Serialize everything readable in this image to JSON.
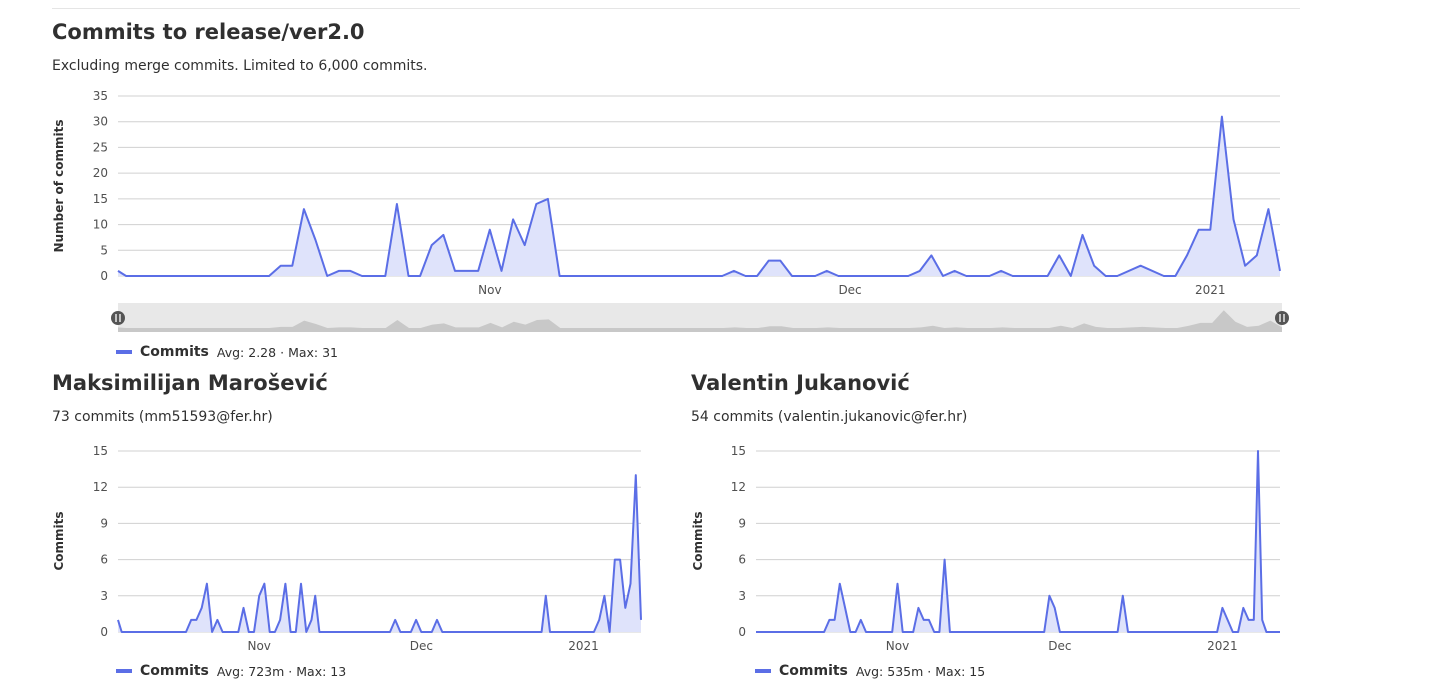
{
  "main": {
    "title": "Commits to release/ver2.0",
    "subtitle": "Excluding merge commits. Limited to 6,000 commits.",
    "legend": {
      "name": "Commits",
      "avg_label": "Avg: 2.28",
      "sep": "·",
      "max_label": "Max: 31"
    }
  },
  "authors": [
    {
      "name": "Maksimilijan Marošević",
      "summary": "73 commits (mm51593@fer.hr)",
      "legend": {
        "name": "Commits",
        "avg_label": "Avg: 723m",
        "sep": "·",
        "max_label": "Max: 13"
      }
    },
    {
      "name": "Valentin Jukanović",
      "summary": "54 commits (valentin.jukanovic@fer.hr)",
      "legend": {
        "name": "Commits",
        "avg_label": "Avg: 535m",
        "sep": "·",
        "max_label": "Max: 15"
      }
    }
  ],
  "colors": {
    "line": "#5b6ee6",
    "fill": "#dfe3fb",
    "grid": "#d0d0d0",
    "brush": "#e8e8e8",
    "brush_area": "#c8c8c8"
  },
  "chart_data": [
    {
      "type": "area",
      "title": "Commits to release/ver2.0",
      "xlabel": "",
      "ylabel": "Number of commits",
      "ylim": [
        0,
        35
      ],
      "yticks": [
        0,
        5,
        10,
        15,
        20,
        25,
        30,
        35
      ],
      "xticks": [
        "Nov",
        "Dec",
        "2021"
      ],
      "xtick_positions": [
        32,
        63,
        94
      ],
      "xlim": [
        0,
        100
      ],
      "grid": true,
      "legend_position": "bottom-left",
      "series": [
        {
          "name": "Commits",
          "points": [
            [
              0,
              1
            ],
            [
              0.7,
              0
            ],
            [
              13,
              0
            ],
            [
              14,
              2
            ],
            [
              15,
              2
            ],
            [
              16,
              13
            ],
            [
              17,
              7
            ],
            [
              18,
              0
            ],
            [
              19,
              1
            ],
            [
              20,
              1
            ],
            [
              21,
              0
            ],
            [
              23,
              0
            ],
            [
              24,
              14
            ],
            [
              25,
              0
            ],
            [
              26,
              0
            ],
            [
              27,
              6
            ],
            [
              28,
              8
            ],
            [
              29,
              1
            ],
            [
              31,
              1
            ],
            [
              32,
              9
            ],
            [
              33,
              1
            ],
            [
              34,
              11
            ],
            [
              35,
              6
            ],
            [
              36,
              14
            ],
            [
              37,
              15
            ],
            [
              38,
              0
            ],
            [
              52,
              0
            ],
            [
              53,
              1
            ],
            [
              54,
              0
            ],
            [
              55,
              0
            ],
            [
              56,
              3
            ],
            [
              57,
              3
            ],
            [
              58,
              0
            ],
            [
              60,
              0
            ],
            [
              61,
              1
            ],
            [
              62,
              0
            ],
            [
              68,
              0
            ],
            [
              69,
              1
            ],
            [
              70,
              4
            ],
            [
              71,
              0
            ],
            [
              72,
              1
            ],
            [
              73,
              0
            ],
            [
              75,
              0
            ],
            [
              76,
              1
            ],
            [
              77,
              0
            ],
            [
              80,
              0
            ],
            [
              81,
              4
            ],
            [
              82,
              0
            ],
            [
              83,
              8
            ],
            [
              84,
              2
            ],
            [
              85,
              0
            ],
            [
              86,
              0
            ],
            [
              88,
              2
            ],
            [
              90,
              0
            ],
            [
              91,
              0
            ],
            [
              92,
              4
            ],
            [
              93,
              9
            ],
            [
              94,
              9
            ],
            [
              95,
              31
            ],
            [
              96,
              11
            ],
            [
              97,
              2
            ],
            [
              98,
              4
            ],
            [
              99,
              13
            ],
            [
              100,
              1
            ]
          ]
        }
      ]
    },
    {
      "type": "area",
      "title": "Maksimilijan Marošević",
      "xlabel": "",
      "ylabel": "Commits",
      "ylim": [
        0,
        15
      ],
      "yticks": [
        0,
        3,
        6,
        9,
        12,
        15
      ],
      "xticks": [
        "Nov",
        "Dec",
        "2021"
      ],
      "xtick_positions": [
        27,
        58,
        89
      ],
      "xlim": [
        0,
        100
      ],
      "grid": true,
      "legend_position": "bottom-left",
      "series": [
        {
          "name": "Commits",
          "points": [
            [
              0,
              1
            ],
            [
              0.7,
              0
            ],
            [
              13,
              0
            ],
            [
              14,
              1
            ],
            [
              15,
              1
            ],
            [
              16,
              2
            ],
            [
              17,
              4
            ],
            [
              18,
              0
            ],
            [
              19,
              1
            ],
            [
              20,
              0
            ],
            [
              23,
              0
            ],
            [
              24,
              2
            ],
            [
              25,
              0
            ],
            [
              26,
              0
            ],
            [
              27,
              3
            ],
            [
              28,
              4
            ],
            [
              29,
              0
            ],
            [
              30,
              0
            ],
            [
              31,
              1
            ],
            [
              32,
              4
            ],
            [
              33,
              0
            ],
            [
              34,
              0
            ],
            [
              35,
              4
            ],
            [
              36,
              0
            ],
            [
              37,
              1
            ],
            [
              37.7,
              3
            ],
            [
              38.5,
              0
            ],
            [
              52,
              0
            ],
            [
              53,
              1
            ],
            [
              54,
              0
            ],
            [
              56,
              0
            ],
            [
              57,
              1
            ],
            [
              58,
              0
            ],
            [
              60,
              0
            ],
            [
              61,
              1
            ],
            [
              62,
              0
            ],
            [
              81,
              0
            ],
            [
              81.8,
              3
            ],
            [
              82.6,
              0
            ],
            [
              91,
              0
            ],
            [
              92,
              1
            ],
            [
              93,
              3
            ],
            [
              94,
              0
            ],
            [
              95,
              6
            ],
            [
              96,
              6
            ],
            [
              97,
              2
            ],
            [
              98,
              4
            ],
            [
              99,
              13
            ],
            [
              100,
              1
            ]
          ]
        }
      ]
    },
    {
      "type": "area",
      "title": "Valentin Jukanović",
      "xlabel": "",
      "ylabel": "Commits",
      "ylim": [
        0,
        15
      ],
      "yticks": [
        0,
        3,
        6,
        9,
        12,
        15
      ],
      "xticks": [
        "Nov",
        "Dec",
        "2021"
      ],
      "xtick_positions": [
        27,
        58,
        89
      ],
      "xlim": [
        0,
        100
      ],
      "grid": true,
      "legend_position": "bottom-left",
      "series": [
        {
          "name": "Commits",
          "points": [
            [
              0,
              0
            ],
            [
              13,
              0
            ],
            [
              14,
              1
            ],
            [
              15,
              1
            ],
            [
              16,
              4
            ],
            [
              17,
              2
            ],
            [
              18,
              0
            ],
            [
              19,
              0
            ],
            [
              20,
              1
            ],
            [
              21,
              0
            ],
            [
              26,
              0
            ],
            [
              27,
              4
            ],
            [
              28,
              0
            ],
            [
              30,
              0
            ],
            [
              31,
              2
            ],
            [
              32,
              1
            ],
            [
              33,
              1
            ],
            [
              34,
              0
            ],
            [
              35,
              0
            ],
            [
              36,
              6
            ],
            [
              37,
              0
            ],
            [
              55,
              0
            ],
            [
              56,
              3
            ],
            [
              57,
              2
            ],
            [
              58,
              0
            ],
            [
              69,
              0
            ],
            [
              70,
              3
            ],
            [
              71,
              0
            ],
            [
              88,
              0
            ],
            [
              89,
              2
            ],
            [
              90,
              1
            ],
            [
              91,
              0
            ],
            [
              92,
              0
            ],
            [
              93,
              2
            ],
            [
              94,
              1
            ],
            [
              95,
              1
            ],
            [
              95.8,
              15
            ],
            [
              96.6,
              1
            ],
            [
              97.4,
              0
            ],
            [
              100,
              0
            ]
          ]
        }
      ]
    }
  ]
}
